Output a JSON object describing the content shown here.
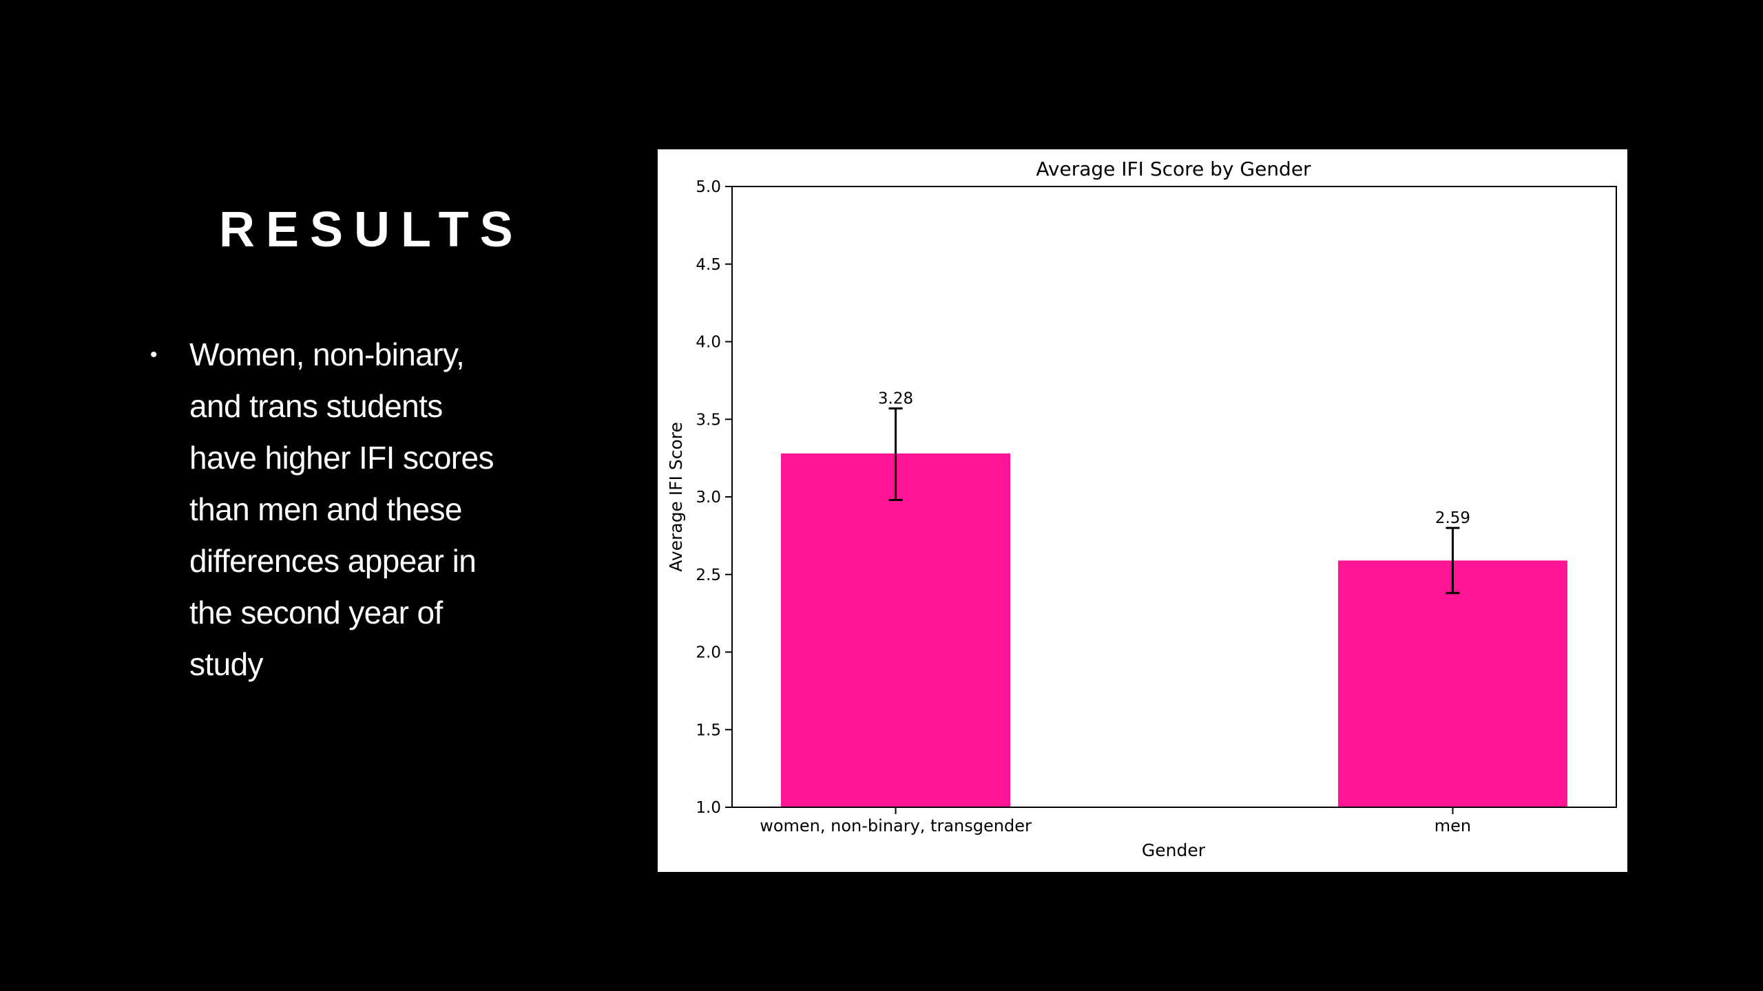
{
  "slide": {
    "title": "RESULTS",
    "bullets": [
      "Women, non-binary, and trans students have higher IFI scores than men and these differences appear in the second year of study"
    ],
    "bullet_marker": "•"
  },
  "colors": {
    "background": "#000000",
    "text": "#ffffff",
    "bar": "#ff1493",
    "panel": "#ffffff"
  },
  "chart_data": {
    "type": "bar",
    "title": "Average IFI Score by Gender",
    "xlabel": "Gender",
    "ylabel": "Average IFI Score",
    "categories": [
      "women, non-binary, transgender",
      "men"
    ],
    "values": [
      3.28,
      2.59
    ],
    "data_labels": [
      "3.28",
      "2.59"
    ],
    "error_bars": [
      {
        "low": 2.98,
        "high": 3.57
      },
      {
        "low": 2.38,
        "high": 2.8
      }
    ],
    "ylim": [
      1.0,
      5.0
    ],
    "yticks": [
      "1.0",
      "1.5",
      "2.0",
      "2.5",
      "3.0",
      "3.5",
      "4.0",
      "4.5",
      "5.0"
    ],
    "grid": false,
    "legend": "none"
  }
}
